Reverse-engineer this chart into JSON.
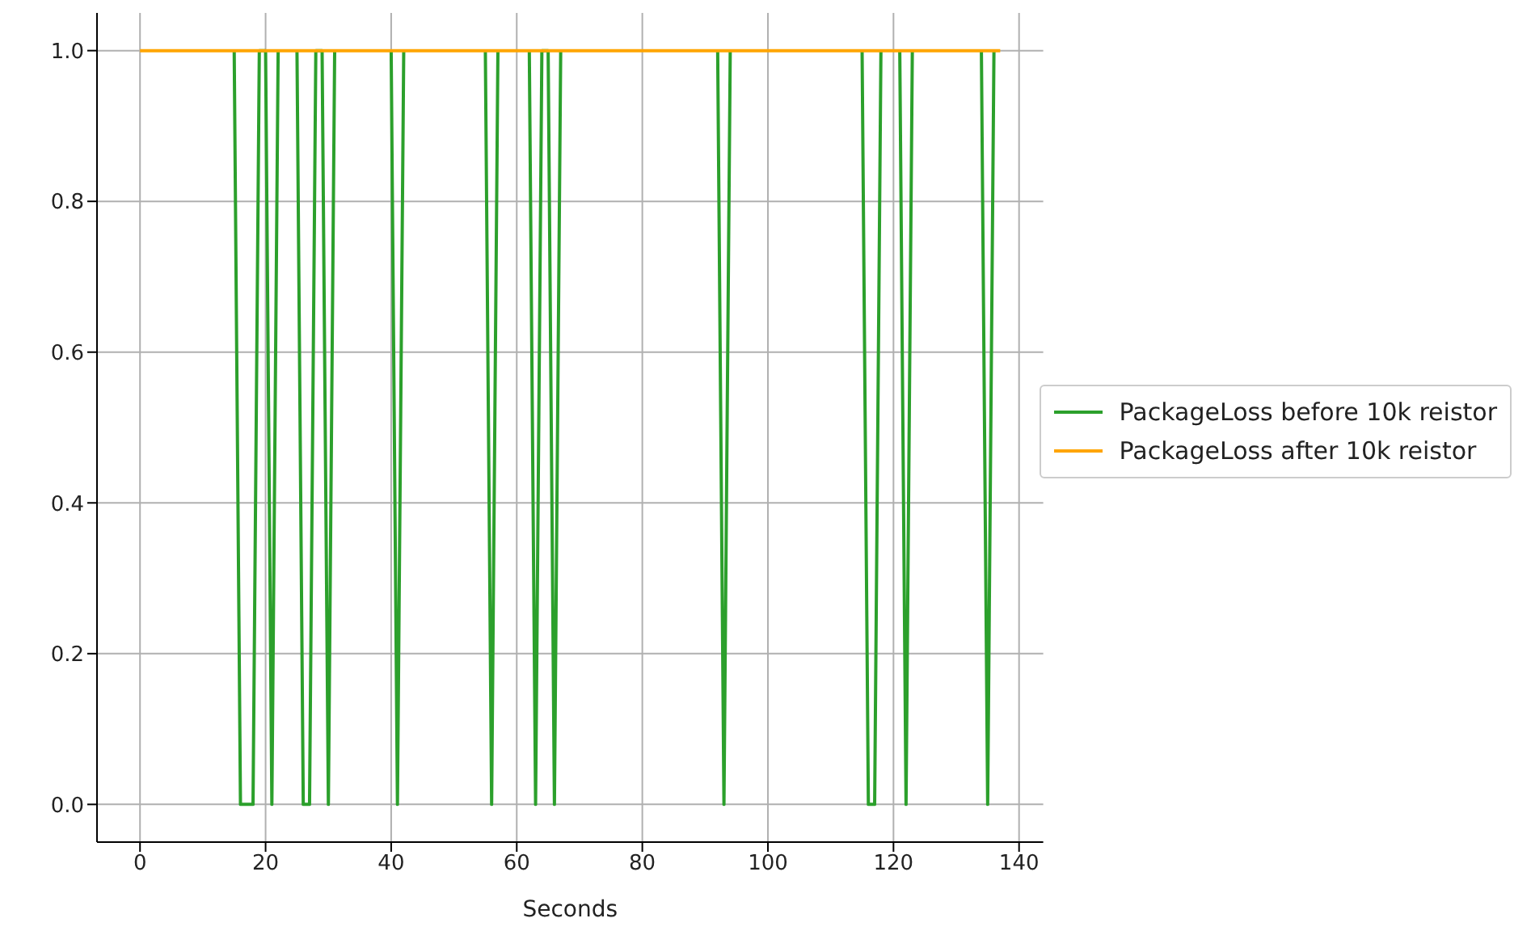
{
  "chart_data": {
    "type": "line",
    "xlabel": "Seconds",
    "x": [
      0,
      1,
      2,
      3,
      4,
      5,
      6,
      7,
      8,
      9,
      10,
      11,
      12,
      13,
      14,
      15,
      16,
      17,
      18,
      19,
      20,
      21,
      22,
      23,
      24,
      25,
      26,
      27,
      28,
      29,
      30,
      31,
      32,
      33,
      34,
      35,
      36,
      37,
      38,
      39,
      40,
      41,
      42,
      43,
      44,
      45,
      46,
      47,
      48,
      49,
      50,
      51,
      52,
      53,
      54,
      55,
      56,
      57,
      58,
      59,
      60,
      61,
      62,
      63,
      64,
      65,
      66,
      67,
      68,
      69,
      70,
      71,
      72,
      73,
      74,
      75,
      76,
      77,
      78,
      79,
      80,
      81,
      82,
      83,
      84,
      85,
      86,
      87,
      88,
      89,
      90,
      91,
      92,
      93,
      94,
      95,
      96,
      97,
      98,
      99,
      100,
      101,
      102,
      103,
      104,
      105,
      106,
      107,
      108,
      109,
      110,
      111,
      112,
      113,
      114,
      115,
      116,
      117,
      118,
      119,
      120,
      121,
      122,
      123,
      124,
      125,
      126,
      127,
      128,
      129,
      130,
      131,
      132,
      133,
      134,
      135,
      136,
      137
    ],
    "series": [
      {
        "name": "PackageLoss before 10k reistor",
        "color": "#2ca02c",
        "values": [
          null,
          null,
          null,
          null,
          null,
          null,
          null,
          null,
          null,
          null,
          null,
          null,
          null,
          null,
          null,
          1,
          0,
          0,
          0,
          1,
          1,
          0,
          1,
          null,
          null,
          1,
          0,
          0,
          1,
          1,
          0,
          1,
          null,
          null,
          null,
          null,
          null,
          null,
          null,
          null,
          1,
          0,
          1,
          null,
          null,
          null,
          null,
          null,
          null,
          null,
          null,
          null,
          null,
          null,
          null,
          1,
          0,
          1,
          null,
          null,
          null,
          null,
          1,
          0,
          1,
          1,
          0,
          1,
          null,
          null,
          null,
          null,
          null,
          null,
          null,
          null,
          null,
          null,
          null,
          null,
          null,
          null,
          null,
          null,
          null,
          null,
          null,
          null,
          null,
          null,
          null,
          null,
          1,
          0,
          1,
          null,
          null,
          null,
          null,
          null,
          null,
          null,
          null,
          null,
          null,
          null,
          null,
          null,
          null,
          null,
          null,
          null,
          null,
          null,
          null,
          1,
          0,
          0,
          1,
          null,
          null,
          1,
          0,
          1,
          null,
          null,
          null,
          null,
          null,
          null,
          null,
          null,
          null,
          null,
          1,
          0,
          1,
          null
        ]
      },
      {
        "name": "PackageLoss after 10k reistor",
        "color": "#ffa500",
        "values": [
          1,
          1,
          1,
          1,
          1,
          1,
          1,
          1,
          1,
          1,
          1,
          1,
          1,
          1,
          1,
          1,
          1,
          1,
          1,
          1,
          1,
          1,
          1,
          1,
          1,
          1,
          1,
          1,
          1,
          1,
          1,
          1,
          1,
          1,
          1,
          1,
          1,
          1,
          1,
          1,
          1,
          1,
          1,
          1,
          1,
          1,
          1,
          1,
          1,
          1,
          1,
          1,
          1,
          1,
          1,
          1,
          1,
          1,
          1,
          1,
          1,
          1,
          1,
          1,
          1,
          1,
          1,
          1,
          1,
          1,
          1,
          1,
          1,
          1,
          1,
          1,
          1,
          1,
          1,
          1,
          1,
          1,
          1,
          1,
          1,
          1,
          1,
          1,
          1,
          1,
          1,
          1,
          1,
          1,
          1,
          1,
          1,
          1,
          1,
          1,
          1,
          1,
          1,
          1,
          1,
          1,
          1,
          1,
          1,
          1,
          1,
          1,
          1,
          1,
          1,
          1,
          1,
          1,
          1,
          1,
          1,
          1,
          1,
          1,
          1,
          1,
          1,
          1,
          1,
          1,
          1,
          1,
          1,
          1,
          1,
          1,
          1,
          1
        ]
      }
    ],
    "xlim": [
      -6.85,
      143.85
    ],
    "xticks": [
      0,
      20,
      40,
      60,
      80,
      100,
      120,
      140
    ],
    "ylim": [
      -0.05,
      1.05
    ],
    "yticks": [
      {
        "value": 0,
        "label": "0.0"
      },
      {
        "value": 0.2,
        "label": "0.2"
      },
      {
        "value": 0.4,
        "label": "0.4"
      },
      {
        "value": 0.6,
        "label": "0.6"
      },
      {
        "value": 0.8,
        "label": "0.8"
      },
      {
        "value": 1,
        "label": "1.0"
      }
    ],
    "grid": true,
    "legend": "right",
    "marker": "none",
    "line_style": "solid"
  }
}
